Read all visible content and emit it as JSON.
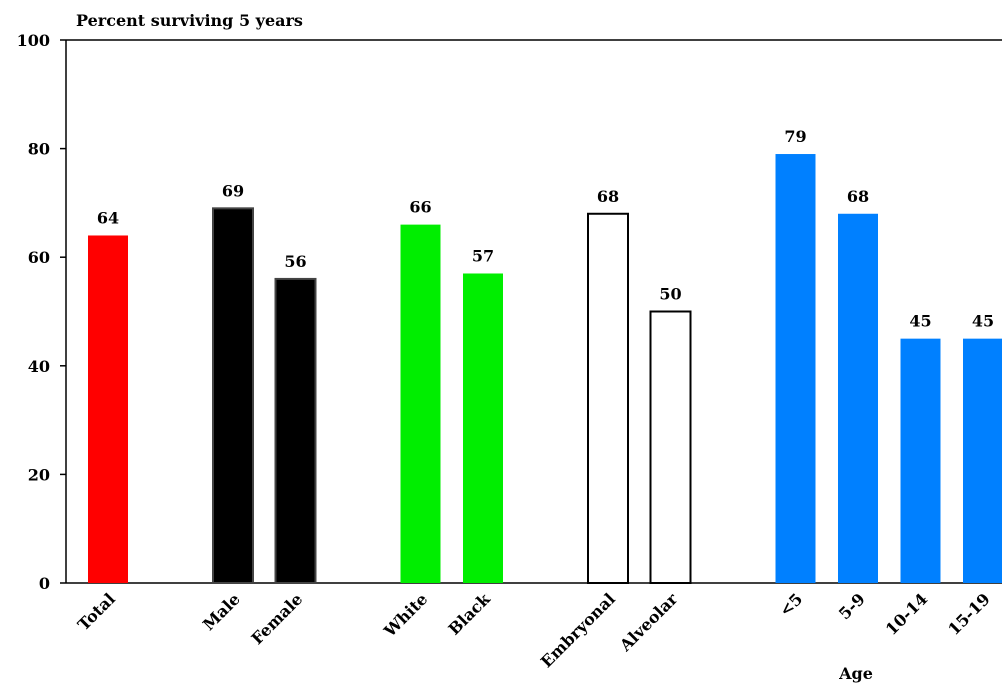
{
  "chart_data": {
    "type": "bar",
    "title": "Percent surviving 5 years",
    "x_label": "Age",
    "categories": [
      "Total",
      "Male",
      "Female",
      "White",
      "Black",
      "Embryonal",
      "Alveolar",
      "<5",
      "5-9",
      "10-14",
      "15-19"
    ],
    "values": [
      64,
      69,
      56,
      66,
      57,
      68,
      50,
      79,
      68,
      45,
      45
    ],
    "colors": [
      "#ff0000",
      "#000000",
      "#000000",
      "#00ee00",
      "#00ee00",
      "#ffffff",
      "#ffffff",
      "#0080ff",
      "#0080ff",
      "#0080ff",
      "#0080ff"
    ],
    "ylim": [
      0,
      100
    ],
    "yticks": [
      0,
      20,
      40,
      60,
      80,
      100
    ]
  }
}
